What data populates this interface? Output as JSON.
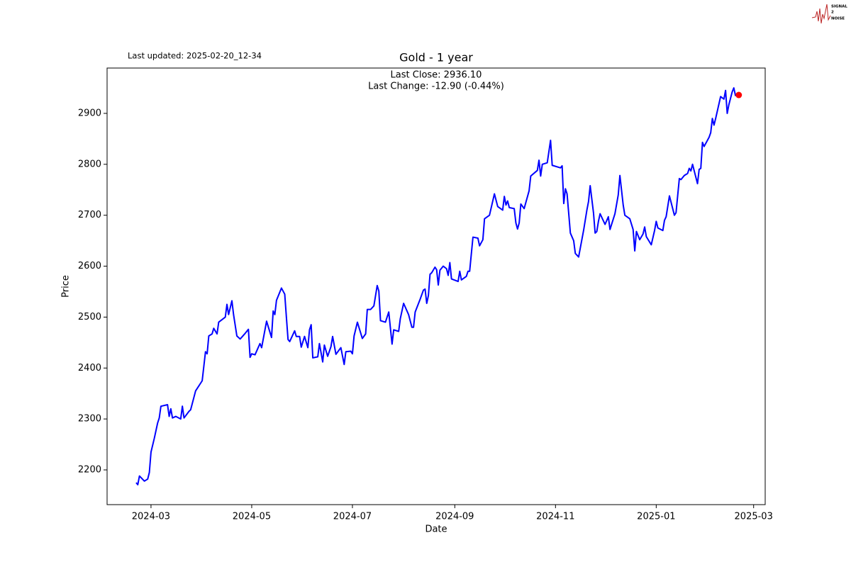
{
  "chart_data": {
    "type": "line",
    "title": "Gold - 1 year",
    "updated": "Last updated: 2025-02-20_12-34",
    "annotations": [
      "Last Close: 2936.10",
      "Last Change: -12.90 (-0.44%)"
    ],
    "xlabel": "Date",
    "ylabel": "Price",
    "logo": [
      "SIGNAL",
      "2",
      "NOISE"
    ],
    "xlim": [
      19756.4,
      20155
    ],
    "ylim": [
      2131.8,
      2989
    ],
    "xticks": [
      {
        "value": 19783,
        "label": "2024-03"
      },
      {
        "value": 19844,
        "label": "2024-05"
      },
      {
        "value": 19905,
        "label": "2024-07"
      },
      {
        "value": 19967,
        "label": "2024-09"
      },
      {
        "value": 20028,
        "label": "2024-11"
      },
      {
        "value": 20089,
        "label": "2025-01"
      },
      {
        "value": 20148,
        "label": "2025-03"
      }
    ],
    "yticks": [
      2200,
      2300,
      2400,
      2500,
      2600,
      2700,
      2800,
      2900
    ],
    "last_point_color": "#ff0000",
    "series": [
      {
        "color": "#0000ff",
        "x": [
          19774,
          19775,
          19776,
          19779,
          19781,
          19782,
          19783,
          19785,
          19787,
          19788,
          19789,
          19793,
          19794,
          19795,
          19796,
          19798,
          19801,
          19802,
          19803,
          19806,
          19807,
          19810,
          19814,
          19816,
          19817,
          19818,
          19820,
          19821,
          19823,
          19824,
          19828,
          19829,
          19830,
          19832,
          19833,
          19835,
          19837,
          19840,
          19842,
          19843,
          19844,
          19846,
          19849,
          19850,
          19853,
          19856,
          19857,
          19858,
          19859,
          19862,
          19864,
          19865,
          19866,
          19867,
          19870,
          19871,
          19873,
          19874,
          19876,
          19878,
          19879,
          19880,
          19881,
          19884,
          19885,
          19887,
          19888,
          19890,
          19892,
          19893,
          19895,
          19898,
          19900,
          19901,
          19904,
          19905,
          19906,
          19908,
          19911,
          19913,
          19914,
          19916,
          19918,
          19920,
          19921,
          19922,
          19925,
          19927,
          19929,
          19930,
          19933,
          19934,
          19936,
          19939,
          19941,
          19942,
          19943,
          19946,
          19948,
          19949,
          19950,
          19951,
          19952,
          19953,
          19955,
          19956,
          19957,
          19958,
          19960,
          19962,
          19963,
          19964,
          19965,
          19969,
          19970,
          19971,
          19974,
          19975,
          19976,
          19978,
          19981,
          19982,
          19984,
          19985,
          19988,
          19991,
          19993,
          19996,
          19997,
          19998,
          19999,
          20000,
          20003,
          20004,
          20005,
          20006,
          20007,
          20009,
          20012,
          20013,
          20017,
          20018,
          20019,
          20020,
          20023,
          20025,
          20026,
          20031,
          20032,
          20033,
          20034,
          20035,
          20037,
          20039,
          20040,
          20042,
          20045,
          20047,
          20048,
          20049,
          20051,
          20052,
          20053,
          20054,
          20055,
          20058,
          20060,
          20061,
          20064,
          20066,
          20067,
          20069,
          20070,
          20073,
          20075,
          20076,
          20077,
          20079,
          20081,
          20082,
          20083,
          20086,
          20088,
          20089,
          20090,
          20093,
          20094,
          20095,
          20097,
          20100,
          20101,
          20103,
          20104,
          20106,
          20108,
          20109,
          20110,
          20111,
          20114,
          20115,
          20116,
          20117,
          20118,
          20121,
          20122,
          20123,
          20124,
          20125,
          20128,
          20130,
          20131,
          20132,
          20133,
          20135,
          20136,
          20137,
          20139
        ],
        "values": [
          2175,
          2171,
          2188,
          2178,
          2182,
          2195,
          2235,
          2262,
          2292,
          2302,
          2325,
          2328,
          2305,
          2320,
          2302,
          2305,
          2300,
          2325,
          2302,
          2315,
          2318,
          2355,
          2375,
          2432,
          2428,
          2463,
          2467,
          2478,
          2467,
          2490,
          2500,
          2525,
          2505,
          2532,
          2505,
          2463,
          2457,
          2468,
          2476,
          2421,
          2428,
          2426,
          2448,
          2440,
          2492,
          2460,
          2512,
          2505,
          2533,
          2557,
          2545,
          2500,
          2456,
          2452,
          2473,
          2462,
          2462,
          2441,
          2462,
          2440,
          2475,
          2485,
          2420,
          2422,
          2448,
          2412,
          2445,
          2423,
          2442,
          2462,
          2427,
          2440,
          2407,
          2432,
          2433,
          2428,
          2463,
          2490,
          2458,
          2467,
          2515,
          2515,
          2522,
          2562,
          2551,
          2493,
          2490,
          2510,
          2447,
          2475,
          2472,
          2497,
          2527,
          2505,
          2480,
          2480,
          2510,
          2535,
          2553,
          2555,
          2527,
          2542,
          2584,
          2587,
          2598,
          2593,
          2563,
          2592,
          2600,
          2595,
          2582,
          2607,
          2575,
          2570,
          2590,
          2573,
          2580,
          2590,
          2590,
          2657,
          2655,
          2640,
          2652,
          2693,
          2700,
          2742,
          2717,
          2710,
          2737,
          2720,
          2728,
          2715,
          2713,
          2685,
          2673,
          2685,
          2722,
          2713,
          2748,
          2777,
          2788,
          2808,
          2777,
          2800,
          2803,
          2847,
          2798,
          2793,
          2797,
          2723,
          2752,
          2742,
          2665,
          2650,
          2625,
          2618,
          2670,
          2710,
          2727,
          2758,
          2705,
          2665,
          2668,
          2688,
          2703,
          2682,
          2697,
          2672,
          2703,
          2740,
          2778,
          2720,
          2700,
          2693,
          2672,
          2630,
          2668,
          2652,
          2663,
          2677,
          2658,
          2642,
          2670,
          2688,
          2675,
          2670,
          2690,
          2697,
          2738,
          2700,
          2705,
          2772,
          2770,
          2778,
          2782,
          2792,
          2787,
          2800,
          2762,
          2790,
          2792,
          2843,
          2835,
          2853,
          2862,
          2890,
          2877,
          2890,
          2933,
          2928,
          2945,
          2900,
          2917,
          2942,
          2950,
          2935,
          2936.1
        ]
      }
    ]
  }
}
